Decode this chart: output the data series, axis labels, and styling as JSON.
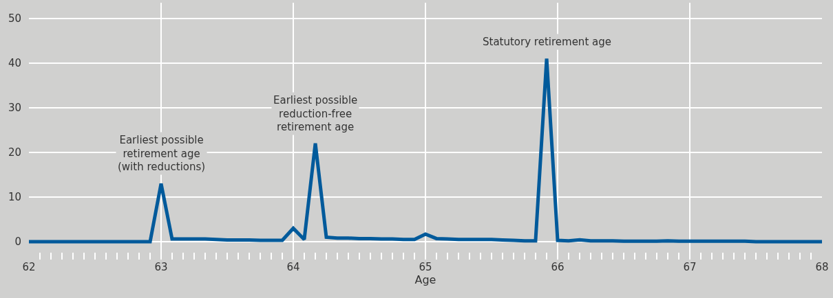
{
  "chart_data": {
    "type": "line",
    "xlabel": "Age",
    "x": [
      62,
      62.083,
      62.167,
      62.25,
      62.333,
      62.417,
      62.5,
      62.583,
      62.667,
      62.75,
      62.833,
      62.917,
      63,
      63.083,
      63.167,
      63.25,
      63.333,
      63.417,
      63.5,
      63.583,
      63.667,
      63.75,
      63.833,
      63.917,
      64,
      64.083,
      64.167,
      64.25,
      64.333,
      64.417,
      64.5,
      64.583,
      64.667,
      64.75,
      64.833,
      64.917,
      65,
      65.083,
      65.167,
      65.25,
      65.333,
      65.417,
      65.5,
      65.583,
      65.667,
      65.75,
      65.833,
      65.917,
      66,
      66.083,
      66.167,
      66.25,
      66.333,
      66.417,
      66.5,
      66.583,
      66.667,
      66.75,
      66.833,
      66.917,
      67,
      67.083,
      67.167,
      67.25,
      67.333,
      67.417,
      67.5,
      67.583,
      67.667,
      67.75,
      67.833,
      67.917,
      68
    ],
    "series": [
      {
        "color": "#005a9b",
        "values": [
          0,
          0,
          0,
          0,
          0,
          0,
          0,
          0,
          0,
          0,
          0,
          0,
          13,
          0.6,
          0.6,
          0.6,
          0.6,
          0.5,
          0.4,
          0.4,
          0.4,
          0.3,
          0.3,
          0.3,
          3,
          0.5,
          22,
          1.0,
          0.8,
          0.8,
          0.7,
          0.7,
          0.6,
          0.6,
          0.5,
          0.5,
          1.7,
          0.7,
          0.6,
          0.5,
          0.5,
          0.5,
          0.5,
          0.4,
          0.3,
          0.2,
          0.2,
          41,
          0.3,
          0.2,
          0.4,
          0.2,
          0.2,
          0.2,
          0.1,
          0.1,
          0.1,
          0.1,
          0.2,
          0.1,
          0.1,
          0.1,
          0.1,
          0.1,
          0.1,
          0.1,
          0,
          0,
          0,
          0,
          0,
          0,
          0
        ]
      }
    ],
    "xlim": [
      62,
      68
    ],
    "xticks": [
      62,
      {
        "value": 62.083,
        "label": null
      },
      {
        "value": 62.167,
        "label": null
      },
      {
        "value": 62.25,
        "label": null
      },
      {
        "value": 62.333,
        "label": null
      },
      {
        "value": 62.417,
        "label": null
      },
      {
        "value": 62.5,
        "label": null
      },
      {
        "value": 62.583,
        "label": null
      },
      {
        "value": 62.667,
        "label": null
      },
      {
        "value": 62.75,
        "label": null
      },
      {
        "value": 62.833,
        "label": null
      },
      {
        "value": 62.917,
        "label": null
      },
      63,
      {
        "value": 63.083,
        "label": null
      },
      {
        "value": 63.167,
        "label": null
      },
      {
        "value": 63.25,
        "label": null
      },
      {
        "value": 63.333,
        "label": null
      },
      {
        "value": 63.417,
        "label": null
      },
      {
        "value": 63.5,
        "label": null
      },
      {
        "value": 63.583,
        "label": null
      },
      {
        "value": 63.667,
        "label": null
      },
      {
        "value": 63.75,
        "label": null
      },
      {
        "value": 63.833,
        "label": null
      },
      {
        "value": 63.917,
        "label": null
      },
      64,
      {
        "value": 64.083,
        "label": null
      },
      {
        "value": 64.167,
        "label": null
      },
      {
        "value": 64.25,
        "label": null
      },
      {
        "value": 64.333,
        "label": null
      },
      {
        "value": 64.417,
        "label": null
      },
      {
        "value": 64.5,
        "label": null
      },
      {
        "value": 64.583,
        "label": null
      },
      {
        "value": 64.667,
        "label": null
      },
      {
        "value": 64.75,
        "label": null
      },
      {
        "value": 64.833,
        "label": null
      },
      {
        "value": 64.917,
        "label": null
      },
      65,
      {
        "value": 65.083,
        "label": null
      },
      {
        "value": 65.167,
        "label": null
      },
      {
        "value": 65.25,
        "label": null
      },
      {
        "value": 65.333,
        "label": null
      },
      {
        "value": 65.417,
        "label": null
      },
      {
        "value": 65.5,
        "label": null
      },
      {
        "value": 65.583,
        "label": null
      },
      {
        "value": 65.667,
        "label": null
      },
      {
        "value": 65.75,
        "label": null
      },
      {
        "value": 65.833,
        "label": null
      },
      {
        "value": 65.917,
        "label": null
      },
      66,
      {
        "value": 66.083,
        "label": null
      },
      {
        "value": 66.167,
        "label": null
      },
      {
        "value": 66.25,
        "label": null
      },
      {
        "value": 66.333,
        "label": null
      },
      {
        "value": 66.417,
        "label": null
      },
      {
        "value": 66.5,
        "label": null
      },
      {
        "value": 66.583,
        "label": null
      },
      {
        "value": 66.667,
        "label": null
      },
      {
        "value": 66.75,
        "label": null
      },
      {
        "value": 66.833,
        "label": null
      },
      {
        "value": 66.917,
        "label": null
      },
      67,
      {
        "value": 67.083,
        "label": null
      },
      {
        "value": 67.167,
        "label": null
      },
      {
        "value": 67.25,
        "label": null
      },
      {
        "value": 67.333,
        "label": null
      },
      {
        "value": 67.417,
        "label": null
      },
      {
        "value": 67.5,
        "label": null
      },
      {
        "value": 67.583,
        "label": null
      },
      {
        "value": 67.667,
        "label": null
      },
      {
        "value": 67.75,
        "label": null
      },
      {
        "value": 67.833,
        "label": null
      },
      {
        "value": 67.917,
        "label": null
      },
      68
    ],
    "ylim": [
      -4,
      53.5
    ],
    "yticks": [
      0,
      10,
      20,
      30,
      40,
      50
    ],
    "grid": true,
    "marker": "none",
    "line_style": "solid",
    "annotations": [
      {
        "text": "Earliest possible\nretirement age\n(with reductions)",
        "x": 63,
        "y": 13
      },
      {
        "text": "Earliest possible\nreduction-free\nretirement age",
        "x": 64.167,
        "y": 22
      },
      {
        "text": "Statutory retirement age",
        "x": 65.917,
        "y": 41
      }
    ]
  }
}
